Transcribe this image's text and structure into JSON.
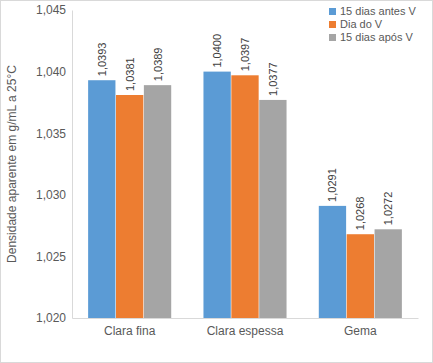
{
  "chart_data": {
    "type": "bar",
    "y_label": "Densidade aparente em g/mL a 25°C",
    "categories": [
      "Clara fina",
      "Clara espessa",
      "Gema"
    ],
    "series": [
      {
        "name": "15 dias antes V",
        "color": "#5b9bd5",
        "values": [
          1.0393,
          1.04,
          1.0291
        ],
        "value_labels": [
          "1,0393",
          "1,0400",
          "1,0291"
        ]
      },
      {
        "name": "Dia do V",
        "color": "#ed7d31",
        "values": [
          1.0381,
          1.0397,
          1.0268
        ],
        "value_labels": [
          "1,0381",
          "1,0397",
          "1,0268"
        ]
      },
      {
        "name": "15 dias após V",
        "color": "#a5a5a5",
        "values": [
          1.0389,
          1.0377,
          1.0272
        ],
        "value_labels": [
          "1,0389",
          "1,0377",
          "1,0272"
        ]
      }
    ],
    "ylim": [
      1.02,
      1.045
    ],
    "yticks": [
      {
        "value": 1.02,
        "label": "1,020"
      },
      {
        "value": 1.025,
        "label": "1,025"
      },
      {
        "value": 1.03,
        "label": "1,030"
      },
      {
        "value": 1.035,
        "label": "1,035"
      },
      {
        "value": 1.04,
        "label": "1,040"
      },
      {
        "value": 1.045,
        "label": "1,045"
      }
    ],
    "grid": false,
    "legend": "top-right",
    "data_labels": true
  }
}
